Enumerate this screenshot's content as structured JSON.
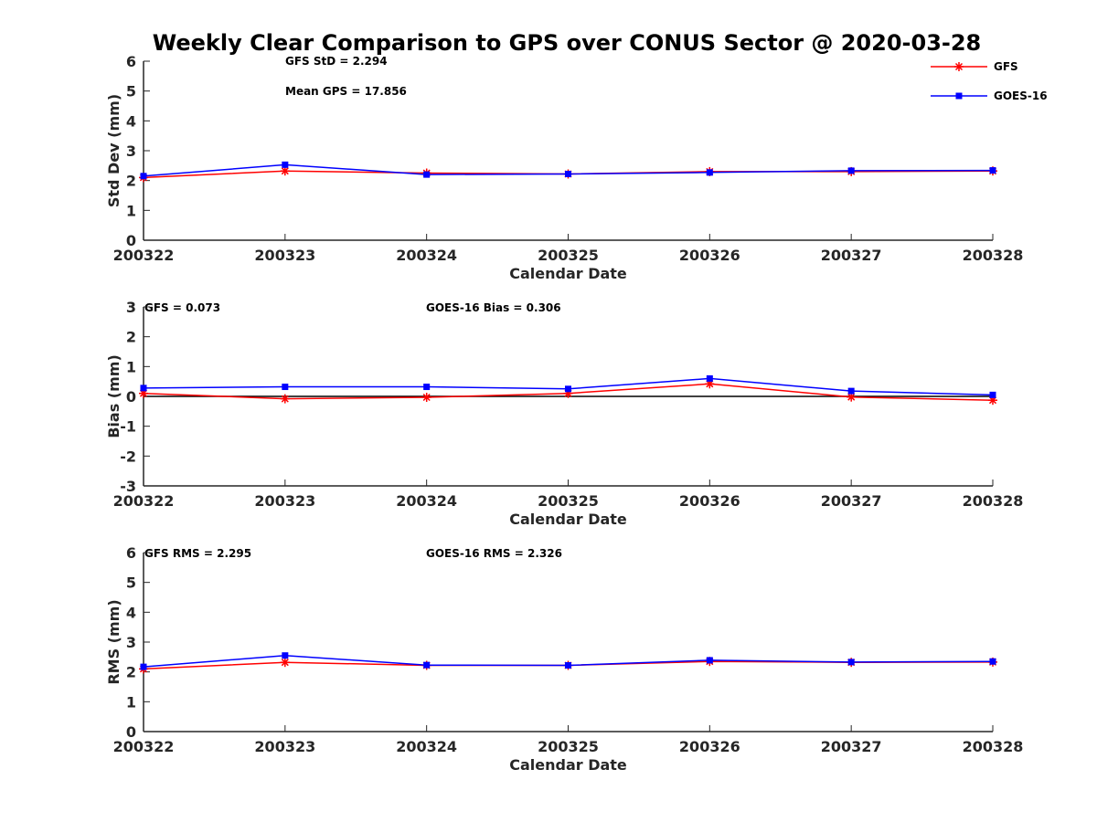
{
  "figure": {
    "title": "Weekly Clear Comparison to GPS over CONUS Sector @ 2020-03-28"
  },
  "legend": {
    "placement": "top-right",
    "entries": [
      {
        "label": "GFS",
        "color": "#ff0000",
        "marker": "asterisk"
      },
      {
        "label": "GOES-16",
        "color": "#0000ff",
        "marker": "square"
      }
    ]
  },
  "chart_data": [
    {
      "type": "line",
      "categories": [
        "200322",
        "200323",
        "200324",
        "200325",
        "200326",
        "200327",
        "200328"
      ],
      "series": [
        {
          "name": "GFS",
          "color": "#ff0000",
          "values": [
            2.1,
            2.32,
            2.25,
            2.22,
            2.3,
            2.3,
            2.32
          ]
        },
        {
          "name": "GOES-16",
          "color": "#0000ff",
          "values": [
            2.15,
            2.53,
            2.2,
            2.22,
            2.27,
            2.33,
            2.34
          ]
        }
      ],
      "xlabel": "Calendar Date",
      "ylabel": "Std Dev (mm)",
      "ylim": [
        0,
        6
      ],
      "yticks": [
        "0",
        "1",
        "2",
        "3",
        "4",
        "5",
        "6"
      ],
      "zero_line": false,
      "annotations": [
        "GFS StD = 2.294",
        "Mean GPS = 17.856"
      ]
    },
    {
      "type": "line",
      "categories": [
        "200322",
        "200323",
        "200324",
        "200325",
        "200326",
        "200327",
        "200328"
      ],
      "series": [
        {
          "name": "GFS",
          "color": "#ff0000",
          "values": [
            0.1,
            -0.08,
            -0.03,
            0.1,
            0.42,
            -0.02,
            -0.13
          ]
        },
        {
          "name": "GOES-16",
          "color": "#0000ff",
          "values": [
            0.28,
            0.32,
            0.32,
            0.25,
            0.6,
            0.18,
            0.05
          ]
        }
      ],
      "xlabel": "Calendar Date",
      "ylabel": "Bias (mm)",
      "ylim": [
        -3,
        3
      ],
      "yticks": [
        "-3",
        "-2",
        "-1",
        "0",
        "1",
        "2",
        "3"
      ],
      "zero_line": true,
      "annotations": [
        "GFS = 0.073",
        "GOES-16 Bias  = 0.306"
      ]
    },
    {
      "type": "line",
      "categories": [
        "200322",
        "200323",
        "200324",
        "200325",
        "200326",
        "200327",
        "200328"
      ],
      "series": [
        {
          "name": "GFS",
          "color": "#ff0000",
          "values": [
            2.1,
            2.32,
            2.22,
            2.22,
            2.35,
            2.32,
            2.33
          ]
        },
        {
          "name": "GOES-16",
          "color": "#0000ff",
          "values": [
            2.17,
            2.55,
            2.23,
            2.22,
            2.39,
            2.33,
            2.35
          ]
        }
      ],
      "xlabel": "Calendar Date",
      "ylabel": "RMS (mm)",
      "ylim": [
        0,
        6
      ],
      "yticks": [
        "0",
        "1",
        "2",
        "3",
        "4",
        "5",
        "6"
      ],
      "zero_line": false,
      "annotations": [
        "GFS RMS = 2.295",
        "GOES-16 RMS = 2.326"
      ]
    }
  ]
}
